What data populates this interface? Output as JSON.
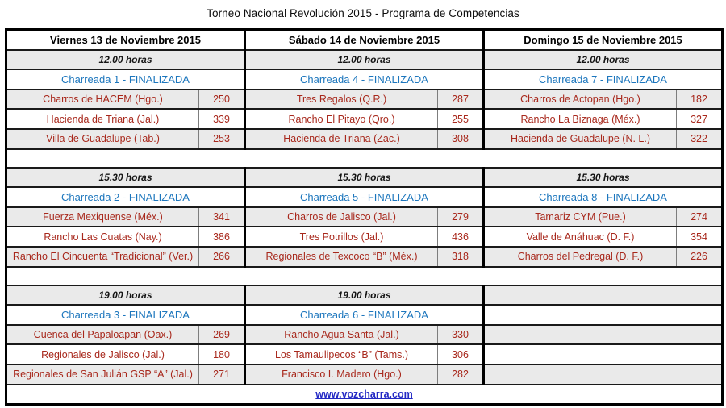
{
  "title": "Torneo Nacional Revolución 2015 - Programa de Competencias",
  "footer_link": "www.vozcharra.com",
  "colors": {
    "team_text": "#a8281c",
    "event_text": "#1c76bd",
    "link": "#2329c4",
    "row_shade": "#eaeaea",
    "border": "#000000"
  },
  "days": [
    {
      "header": "Viernes 13 de Noviembre 2015",
      "sessions": [
        {
          "time": "12.00 horas",
          "event": "Charreada 1 - FINALIZADA",
          "teams": [
            {
              "name": "Charros de HACEM (Hgo.)",
              "score": "250"
            },
            {
              "name": "Hacienda de Triana (Jal.)",
              "score": "339"
            },
            {
              "name": "Villa de Guadalupe (Tab.)",
              "score": "253"
            }
          ]
        },
        {
          "time": "15.30 horas",
          "event": "Charreada 2 - FINALIZADA",
          "teams": [
            {
              "name": "Fuerza Mexiquense (Méx.)",
              "score": "341"
            },
            {
              "name": "Rancho Las Cuatas (Nay.)",
              "score": "386"
            },
            {
              "name": "Rancho El Cincuenta “Tradicional” (Ver.)",
              "score": "266"
            }
          ]
        },
        {
          "time": "19.00 horas",
          "event": "Charreada 3 - FINALIZADA",
          "teams": [
            {
              "name": "Cuenca del Papaloapan (Oax.)",
              "score": "269"
            },
            {
              "name": "Regionales de Jalisco (Jal.)",
              "score": "180"
            },
            {
              "name": "Regionales de San Julián GSP “A” (Jal.)",
              "score": "271"
            }
          ]
        }
      ]
    },
    {
      "header": "Sábado 14 de Noviembre 2015",
      "sessions": [
        {
          "time": "12.00 horas",
          "event": "Charreada 4 - FINALIZADA",
          "teams": [
            {
              "name": "Tres Regalos (Q.R.)",
              "score": "287"
            },
            {
              "name": "Rancho El Pitayo (Qro.)",
              "score": "255"
            },
            {
              "name": "Hacienda de Triana (Zac.)",
              "score": "308"
            }
          ]
        },
        {
          "time": "15.30 horas",
          "event": "Charreada 5 - FINALIZADA",
          "teams": [
            {
              "name": "Charros de Jalisco (Jal.)",
              "score": "279"
            },
            {
              "name": "Tres Potrillos (Jal.)",
              "score": "436"
            },
            {
              "name": "Regionales de Texcoco “B” (Méx.)",
              "score": "318"
            }
          ]
        },
        {
          "time": "19.00 horas",
          "event": "Charreada 6 - FINALIZADA",
          "teams": [
            {
              "name": "Rancho Agua Santa (Jal.)",
              "score": "330"
            },
            {
              "name": "Los Tamaulipecos “B” (Tams.)",
              "score": "306"
            },
            {
              "name": "Francisco I. Madero (Hgo.)",
              "score": "282"
            }
          ]
        }
      ]
    },
    {
      "header": "Domingo 15 de Noviembre 2015",
      "sessions": [
        {
          "time": "12.00 horas",
          "event": "Charreada 7 - FINALIZADA",
          "teams": [
            {
              "name": "Charros de Actopan (Hgo.)",
              "score": "182"
            },
            {
              "name": "Rancho La Biznaga (Méx.)",
              "score": "327"
            },
            {
              "name": "Hacienda de Guadalupe (N. L.)",
              "score": "322"
            }
          ]
        },
        {
          "time": "15.30 horas",
          "event": "Charreada 8 - FINALIZADA",
          "teams": [
            {
              "name": "Tamariz CYM (Pue.)",
              "score": "274"
            },
            {
              "name": "Valle de Anáhuac (D. F.)",
              "score": "354"
            },
            {
              "name": "Charros del Pedregal (D. F.)",
              "score": "226"
            }
          ]
        },
        {
          "time": "",
          "event": "",
          "teams": []
        }
      ]
    }
  ]
}
